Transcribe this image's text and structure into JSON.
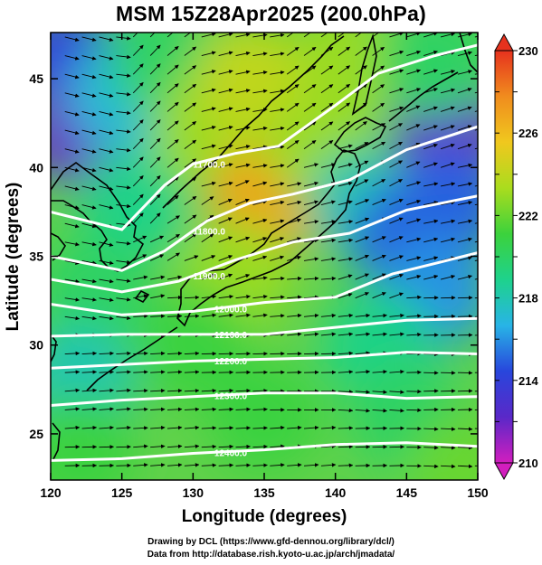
{
  "title": "MSM 15Z28Apr2025 (200.0hPa)",
  "axes": {
    "xlabel": "Longitude (degrees)",
    "ylabel": "Latitude  (degrees)",
    "xlim": [
      120,
      150
    ],
    "ylim": [
      22.4,
      47.6
    ],
    "xticks": [
      "120",
      "125",
      "130",
      "135",
      "140",
      "145",
      "150"
    ],
    "yticks": [
      "25",
      "30",
      "35",
      "40",
      "45"
    ]
  },
  "colorbar": {
    "min": 210,
    "max": 230,
    "labels": [
      "210",
      "214",
      "218",
      "222",
      "226",
      "230"
    ],
    "colors": [
      "#d21ebe",
      "#5a28c8",
      "#2846dc",
      "#28b4e6",
      "#1ed28c",
      "#3cd23c",
      "#aadc1e",
      "#f0c81e",
      "#f08c1e",
      "#e6321e"
    ]
  },
  "contours": {
    "values": [
      "11700.0",
      "11800.0",
      "11900.0",
      "12000.0",
      "12100.0",
      "12200.0",
      "12300.0",
      "12400.0"
    ],
    "color": "#ffffff"
  },
  "credits": {
    "line1": "Drawing by DCL (https://www.gfd-dennou.org/library/dcl/)",
    "line2": "Data from http://database.rish.kyoto-u.ac.jp/arch/jmadata/"
  },
  "chart_data": {
    "type": "heatmap",
    "title": "MSM 15Z28Apr2025 (200.0hPa)",
    "xlabel": "Longitude (degrees)",
    "ylabel": "Latitude  (degrees)",
    "xlim": [
      120,
      150
    ],
    "ylim": [
      22.4,
      47.6
    ],
    "colorbar_range": [
      210,
      230
    ],
    "field": [
      {
        "lon": 121,
        "lat": 46,
        "value": 214
      },
      {
        "lon": 122,
        "lat": 42,
        "value": 212
      },
      {
        "lon": 125,
        "lat": 44,
        "value": 217
      },
      {
        "lon": 126,
        "lat": 38,
        "value": 219
      },
      {
        "lon": 123,
        "lat": 33,
        "value": 220
      },
      {
        "lon": 122,
        "lat": 28,
        "value": 218
      },
      {
        "lon": 122,
        "lat": 24,
        "value": 221
      },
      {
        "lon": 128,
        "lat": 46,
        "value": 220
      },
      {
        "lon": 131,
        "lat": 42,
        "value": 223
      },
      {
        "lon": 134,
        "lat": 45,
        "value": 224
      },
      {
        "lon": 135,
        "lat": 38,
        "value": 227
      },
      {
        "lon": 133,
        "lat": 34,
        "value": 223
      },
      {
        "lon": 130,
        "lat": 30,
        "value": 221
      },
      {
        "lon": 135,
        "lat": 26,
        "value": 221
      },
      {
        "lon": 141,
        "lat": 46,
        "value": 223
      },
      {
        "lon": 139,
        "lat": 41,
        "value": 223
      },
      {
        "lon": 142,
        "lat": 38,
        "value": 218
      },
      {
        "lon": 145,
        "lat": 36,
        "value": 215
      },
      {
        "lon": 148,
        "lat": 42,
        "value": 212
      },
      {
        "lon": 148,
        "lat": 38,
        "value": 215
      },
      {
        "lon": 147,
        "lat": 33,
        "value": 216
      },
      {
        "lon": 143,
        "lat": 30,
        "value": 219
      },
      {
        "lon": 145,
        "lat": 26,
        "value": 220
      },
      {
        "lon": 149,
        "lat": 23,
        "value": 222
      },
      {
        "lon": 147,
        "lat": 46,
        "value": 220
      }
    ],
    "height_contours": [
      {
        "value": 11700,
        "lat_at_lon": [
          [
            120,
            37.5
          ],
          [
            125,
            36.5
          ],
          [
            128,
            39.0
          ],
          [
            130,
            40.2
          ],
          [
            133,
            40.8
          ],
          [
            136,
            41.2
          ],
          [
            140,
            43.5
          ],
          [
            143,
            45.3
          ],
          [
            147,
            46.3
          ],
          [
            150,
            46.9
          ]
        ]
      },
      {
        "value": 11800,
        "lat_at_lon": [
          [
            120,
            35.0
          ],
          [
            125,
            34.2
          ],
          [
            128,
            35.3
          ],
          [
            131,
            37.0
          ],
          [
            134,
            38.0
          ],
          [
            137,
            38.5
          ],
          [
            141,
            39.3
          ],
          [
            145,
            41.0
          ],
          [
            150,
            42.3
          ]
        ]
      },
      {
        "value": 11900,
        "lat_at_lon": [
          [
            120,
            33.7
          ],
          [
            125,
            33.0
          ],
          [
            129,
            33.6
          ],
          [
            133,
            34.8
          ],
          [
            137,
            35.8
          ],
          [
            141,
            36.3
          ],
          [
            145,
            37.6
          ],
          [
            150,
            38.4
          ]
        ]
      },
      {
        "value": 12000,
        "lat_at_lon": [
          [
            120,
            32.3
          ],
          [
            125,
            31.7
          ],
          [
            130,
            31.9
          ],
          [
            135,
            32.4
          ],
          [
            140,
            32.7
          ],
          [
            144,
            34.0
          ],
          [
            147,
            34.6
          ],
          [
            150,
            35.2
          ]
        ]
      },
      {
        "value": 12100,
        "lat_at_lon": [
          [
            120,
            30.5
          ],
          [
            125,
            30.6
          ],
          [
            130,
            30.6
          ],
          [
            135,
            30.6
          ],
          [
            140,
            31.0
          ],
          [
            145,
            31.4
          ],
          [
            150,
            31.5
          ]
        ]
      },
      {
        "value": 12200,
        "lat_at_lon": [
          [
            120,
            28.7
          ],
          [
            125,
            28.9
          ],
          [
            130,
            29.1
          ],
          [
            135,
            29.2
          ],
          [
            140,
            29.3
          ],
          [
            145,
            29.6
          ],
          [
            150,
            29.5
          ]
        ]
      },
      {
        "value": 12300,
        "lat_at_lon": [
          [
            120,
            26.6
          ],
          [
            125,
            26.9
          ],
          [
            130,
            27.1
          ],
          [
            135,
            27.3
          ],
          [
            140,
            27.3
          ],
          [
            145,
            27.0
          ],
          [
            150,
            27.1
          ]
        ]
      },
      {
        "value": 12400,
        "lat_at_lon": [
          [
            120,
            23.5
          ],
          [
            125,
            23.6
          ],
          [
            130,
            23.9
          ],
          [
            135,
            24.1
          ],
          [
            140,
            24.4
          ],
          [
            145,
            24.5
          ],
          [
            150,
            24.3
          ]
        ]
      }
    ]
  }
}
